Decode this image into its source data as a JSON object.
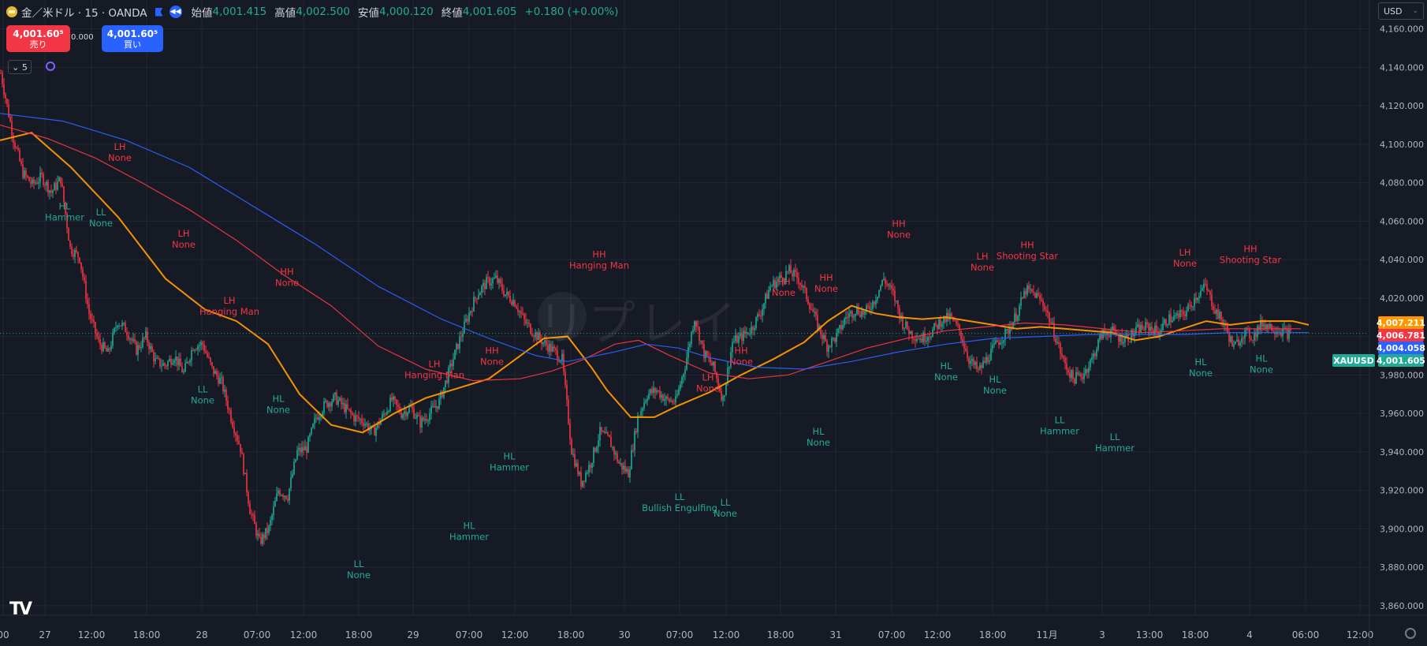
{
  "header": {
    "symbol": "金／米ドル · 15 · OANDA",
    "open_label": "始値",
    "open": "4,001.415",
    "high_label": "高値",
    "high": "4,002.500",
    "low_label": "安値",
    "low": "4,000.120",
    "close_label": "終値",
    "close": "4,001.605",
    "change": "+0.180 (+0.00%)",
    "icons": {
      "symbol": "gold-coin-icon",
      "flag": "flag-icon",
      "replay": "replay-icon"
    }
  },
  "trade": {
    "sell_price": "4,001.60⁵",
    "sell_label": "売り",
    "spread": "0.000",
    "buy_price": "4,001.60⁵",
    "buy_label": "買い"
  },
  "indicator": {
    "collapse_label": "⌄ 5",
    "icon": "sync-icon"
  },
  "currency": "USD",
  "watermark": "リプレイ",
  "colors": {
    "up": "#22ab94",
    "down": "#f23645",
    "ema_fast": "#ff9800",
    "ema_mid": "#f23645",
    "ema_slow": "#2962ff",
    "bg": "#161a25"
  },
  "chart_data": {
    "type": "candlestick",
    "symbol": "XAUUSD",
    "timeframe": "15",
    "ylim": [
      3855,
      4175
    ],
    "y_ticks": [
      "4,160.000",
      "4,140.000",
      "4,120.000",
      "4,100.000",
      "4,080.000",
      "4,060.000",
      "4,040.000",
      "4,020.000",
      "4,000.000",
      "3,980.000",
      "3,960.000",
      "3,940.000",
      "3,920.000",
      "3,900.000",
      "3,880.000",
      "3,860.000"
    ],
    "x_ticks": [
      "00",
      "27",
      "12:00",
      "18:00",
      "28",
      "07:00",
      "12:00",
      "18:00",
      "29",
      "07:00",
      "12:00",
      "18:00",
      "30",
      "07:00",
      "12:00",
      "18:00",
      "31",
      "07:00",
      "12:00",
      "18:00",
      "11月",
      "3",
      "13:00",
      "18:00",
      "4",
      "06:00",
      "12:00"
    ],
    "price_path": [
      [
        0,
        4137
      ],
      [
        8,
        4103
      ],
      [
        14,
        4085
      ],
      [
        20,
        4079
      ],
      [
        26,
        4083
      ],
      [
        32,
        4075
      ],
      [
        38,
        4082
      ],
      [
        44,
        4046
      ],
      [
        50,
        4041
      ],
      [
        56,
        4012
      ],
      [
        62,
        3997
      ],
      [
        68,
        3991
      ],
      [
        74,
        4008
      ],
      [
        80,
        4003
      ],
      [
        86,
        3993
      ],
      [
        92,
        4000
      ],
      [
        98,
        3987
      ],
      [
        104,
        3985
      ],
      [
        110,
        3990
      ],
      [
        116,
        3981
      ],
      [
        122,
        3995
      ],
      [
        128,
        3996
      ],
      [
        134,
        3983
      ],
      [
        140,
        3976
      ],
      [
        146,
        3958
      ],
      [
        152,
        3942
      ],
      [
        158,
        3910
      ],
      [
        164,
        3893
      ],
      [
        170,
        3900
      ],
      [
        176,
        3920
      ],
      [
        182,
        3917
      ],
      [
        188,
        3940
      ],
      [
        194,
        3942
      ],
      [
        200,
        3958
      ],
      [
        206,
        3965
      ],
      [
        212,
        3968
      ],
      [
        218,
        3963
      ],
      [
        224,
        3958
      ],
      [
        230,
        3956
      ],
      [
        236,
        3950
      ],
      [
        242,
        3958
      ],
      [
        248,
        3967
      ],
      [
        254,
        3960
      ],
      [
        260,
        3963
      ],
      [
        266,
        3955
      ],
      [
        272,
        3960
      ],
      [
        278,
        3966
      ],
      [
        284,
        3981
      ],
      [
        290,
        3996
      ],
      [
        296,
        4010
      ],
      [
        302,
        4022
      ],
      [
        308,
        4028
      ],
      [
        314,
        4030
      ],
      [
        320,
        4022
      ],
      [
        326,
        4018
      ],
      [
        332,
        4008
      ],
      [
        338,
        4002
      ],
      [
        344,
        3997
      ],
      [
        350,
        3993
      ],
      [
        356,
        3988
      ],
      [
        362,
        3941
      ],
      [
        368,
        3924
      ],
      [
        374,
        3934
      ],
      [
        380,
        3950
      ],
      [
        386,
        3946
      ],
      [
        392,
        3934
      ],
      [
        398,
        3929
      ],
      [
        404,
        3958
      ],
      [
        410,
        3970
      ],
      [
        416,
        3972
      ],
      [
        422,
        3967
      ],
      [
        428,
        3966
      ],
      [
        434,
        3985
      ],
      [
        440,
        4010
      ],
      [
        446,
        3991
      ],
      [
        452,
        3984
      ],
      [
        458,
        3967
      ],
      [
        464,
        3997
      ],
      [
        470,
        4000
      ],
      [
        476,
        4004
      ],
      [
        482,
        4013
      ],
      [
        488,
        4026
      ],
      [
        494,
        4030
      ],
      [
        500,
        4034
      ],
      [
        506,
        4030
      ],
      [
        512,
        4019
      ],
      [
        518,
        4006
      ],
      [
        524,
        3995
      ],
      [
        530,
        4000
      ],
      [
        536,
        4010
      ],
      [
        542,
        4014
      ],
      [
        548,
        4012
      ],
      [
        554,
        4019
      ],
      [
        560,
        4030
      ],
      [
        566,
        4022
      ],
      [
        572,
        4007
      ],
      [
        578,
        4001
      ],
      [
        584,
        3999
      ],
      [
        590,
        4002
      ],
      [
        596,
        4008
      ],
      [
        602,
        4010
      ],
      [
        608,
        4003
      ],
      [
        614,
        3988
      ],
      [
        620,
        3982
      ],
      [
        626,
        3989
      ],
      [
        632,
        3997
      ],
      [
        638,
        4002
      ],
      [
        644,
        4011
      ],
      [
        650,
        4024
      ],
      [
        656,
        4022
      ],
      [
        662,
        4016
      ],
      [
        668,
        4002
      ],
      [
        674,
        3987
      ],
      [
        680,
        3978
      ],
      [
        686,
        3980
      ],
      [
        692,
        3988
      ],
      [
        698,
        4001
      ],
      [
        704,
        4003
      ],
      [
        710,
        3999
      ],
      [
        716,
        4000
      ],
      [
        722,
        4004
      ],
      [
        728,
        4005
      ],
      [
        734,
        4002
      ],
      [
        740,
        4009
      ],
      [
        746,
        4010
      ],
      [
        752,
        4013
      ],
      [
        758,
        4021
      ],
      [
        764,
        4026
      ],
      [
        770,
        4014
      ],
      [
        776,
        4006
      ],
      [
        782,
        3994
      ],
      [
        788,
        4002
      ],
      [
        794,
        4000
      ],
      [
        800,
        4007
      ],
      [
        806,
        4005
      ],
      [
        812,
        4003
      ],
      [
        818,
        4001
      ]
    ],
    "series": [
      {
        "name": "",
        "color": "#ff9800",
        "values": [
          [
            0,
            4102
          ],
          [
            40,
            4106
          ],
          [
            90,
            4088
          ],
          [
            150,
            4062
          ],
          [
            210,
            4030
          ],
          [
            260,
            4014
          ],
          [
            300,
            4008
          ],
          [
            340,
            3996
          ],
          [
            380,
            3970
          ],
          [
            420,
            3954
          ],
          [
            460,
            3950
          ],
          [
            500,
            3960
          ],
          [
            540,
            3968
          ],
          [
            580,
            3973
          ],
          [
            620,
            3978
          ],
          [
            660,
            3990
          ],
          [
            690,
            3999
          ],
          [
            720,
            4000
          ],
          [
            750,
            3984
          ],
          [
            770,
            3972
          ],
          [
            800,
            3958
          ],
          [
            830,
            3958
          ],
          [
            860,
            3964
          ],
          [
            900,
            3971
          ],
          [
            940,
            3980
          ],
          [
            980,
            3988
          ],
          [
            1020,
            3997
          ],
          [
            1050,
            4008
          ],
          [
            1080,
            4016
          ],
          [
            1110,
            4012
          ],
          [
            1140,
            4010
          ],
          [
            1170,
            4009
          ],
          [
            1200,
            4010
          ],
          [
            1230,
            4008
          ],
          [
            1260,
            4006
          ],
          [
            1290,
            4004
          ],
          [
            1320,
            4005
          ],
          [
            1350,
            4004
          ],
          [
            1380,
            4003
          ],
          [
            1410,
            4002
          ],
          [
            1440,
            3998
          ],
          [
            1470,
            4000
          ],
          [
            1500,
            4004
          ],
          [
            1530,
            4008
          ],
          [
            1560,
            4006
          ],
          [
            1600,
            4008
          ],
          [
            1640,
            4008
          ],
          [
            1660,
            4006
          ]
        ]
      },
      {
        "name": "",
        "color": "#f23645",
        "values": [
          [
            0,
            4110
          ],
          [
            60,
            4103
          ],
          [
            120,
            4093
          ],
          [
            180,
            4080
          ],
          [
            240,
            4066
          ],
          [
            300,
            4050
          ],
          [
            360,
            4032
          ],
          [
            420,
            4016
          ],
          [
            480,
            3995
          ],
          [
            540,
            3983
          ],
          [
            600,
            3977
          ],
          [
            660,
            3978
          ],
          [
            700,
            3982
          ],
          [
            740,
            3988
          ],
          [
            780,
            3996
          ],
          [
            810,
            3998
          ],
          [
            850,
            3990
          ],
          [
            900,
            3981
          ],
          [
            950,
            3978
          ],
          [
            1000,
            3980
          ],
          [
            1050,
            3987
          ],
          [
            1100,
            3994
          ],
          [
            1150,
            3999
          ],
          [
            1200,
            4003
          ],
          [
            1250,
            4005
          ],
          [
            1300,
            4007
          ],
          [
            1350,
            4006
          ],
          [
            1400,
            4004
          ],
          [
            1450,
            4002
          ],
          [
            1500,
            4003
          ],
          [
            1550,
            4004
          ],
          [
            1600,
            4004
          ],
          [
            1650,
            4004
          ]
        ]
      },
      {
        "name": "",
        "color": "#2962ff",
        "values": [
          [
            0,
            4116
          ],
          [
            80,
            4112
          ],
          [
            160,
            4102
          ],
          [
            240,
            4088
          ],
          [
            320,
            4068
          ],
          [
            400,
            4048
          ],
          [
            480,
            4026
          ],
          [
            560,
            4009
          ],
          [
            620,
            3999
          ],
          [
            680,
            3990
          ],
          [
            720,
            3987
          ],
          [
            780,
            3992
          ],
          [
            820,
            3996
          ],
          [
            860,
            3994
          ],
          [
            900,
            3989
          ],
          [
            960,
            3984
          ],
          [
            1020,
            3983
          ],
          [
            1080,
            3987
          ],
          [
            1140,
            3992
          ],
          [
            1200,
            3996
          ],
          [
            1260,
            3999
          ],
          [
            1320,
            4000
          ],
          [
            1380,
            4001
          ],
          [
            1440,
            4001
          ],
          [
            1500,
            4001
          ],
          [
            1560,
            4002
          ],
          [
            1620,
            4002
          ],
          [
            1660,
            4002
          ]
        ]
      }
    ],
    "price_labels": [
      {
        "value": "4,007.211",
        "color": "#ff9800",
        "price": 4007.211
      },
      {
        "value": "4,006.781",
        "color": "#f23645",
        "price": 4006.781
      },
      {
        "value": "4,004.058",
        "color": "#2962ff",
        "price": 4004.058
      },
      {
        "value": "4,001.605",
        "color": "#22ab94",
        "price": 4001.605,
        "tag": "XAUUSD"
      }
    ],
    "annotations": [
      {
        "lines": [
          "HL",
          "Hammer"
        ],
        "x": 82,
        "price": 4066,
        "color": "#22ab94"
      },
      {
        "lines": [
          "LL",
          "None"
        ],
        "x": 128,
        "price": 4063,
        "color": "#22ab94"
      },
      {
        "lines": [
          "LH",
          "None"
        ],
        "x": 152,
        "price": 4097,
        "color": "#f23645"
      },
      {
        "lines": [
          "LH",
          "None"
        ],
        "x": 233,
        "price": 4052,
        "color": "#f23645"
      },
      {
        "lines": [
          "LH",
          "Hanging Man"
        ],
        "x": 291,
        "price": 4017,
        "color": "#f23645"
      },
      {
        "lines": [
          "HH",
          "None"
        ],
        "x": 364,
        "price": 4032,
        "color": "#f23645"
      },
      {
        "lines": [
          "LL",
          "None"
        ],
        "x": 257,
        "price": 3971,
        "color": "#22ab94"
      },
      {
        "lines": [
          "HL",
          "None"
        ],
        "x": 353,
        "price": 3966,
        "color": "#22ab94"
      },
      {
        "lines": [
          "LL",
          "None"
        ],
        "x": 455,
        "price": 3880,
        "color": "#22ab94"
      },
      {
        "lines": [
          "LH",
          "Hanging Man"
        ],
        "x": 551,
        "price": 3984,
        "color": "#f23645"
      },
      {
        "lines": [
          "HH",
          "None"
        ],
        "x": 624,
        "price": 3991,
        "color": "#f23645"
      },
      {
        "lines": [
          "HL",
          "Hammer"
        ],
        "x": 595,
        "price": 3900,
        "color": "#22ab94"
      },
      {
        "lines": [
          "HL",
          "Hammer"
        ],
        "x": 646,
        "price": 3936,
        "color": "#22ab94"
      },
      {
        "lines": [
          "HH",
          "Hanging Man"
        ],
        "x": 760,
        "price": 4041,
        "color": "#f23645"
      },
      {
        "lines": [
          "LL",
          "Bullish Engulfing"
        ],
        "x": 862,
        "price": 3915,
        "color": "#22ab94"
      },
      {
        "lines": [
          "LL",
          "None"
        ],
        "x": 920,
        "price": 3912,
        "color": "#22ab94"
      },
      {
        "lines": [
          "LH",
          "None"
        ],
        "x": 898,
        "price": 3977,
        "color": "#f23645"
      },
      {
        "lines": [
          "HH",
          "None"
        ],
        "x": 940,
        "price": 3991,
        "color": "#f23645"
      },
      {
        "lines": [
          "HH",
          "None"
        ],
        "x": 994,
        "price": 4027,
        "color": "#f23645"
      },
      {
        "lines": [
          "HH",
          "None"
        ],
        "x": 1048,
        "price": 4029,
        "color": "#f23645"
      },
      {
        "lines": [
          "HL",
          "None"
        ],
        "x": 1038,
        "price": 3949,
        "color": "#22ab94"
      },
      {
        "lines": [
          "HH",
          "None"
        ],
        "x": 1140,
        "price": 4057,
        "color": "#f23645"
      },
      {
        "lines": [
          "LH",
          "None"
        ],
        "x": 1246,
        "price": 4040,
        "color": "#f23645"
      },
      {
        "lines": [
          "HH",
          "Shooting Star"
        ],
        "x": 1303,
        "price": 4046,
        "color": "#f23645"
      },
      {
        "lines": [
          "HL",
          "None"
        ],
        "x": 1200,
        "price": 3983,
        "color": "#22ab94"
      },
      {
        "lines": [
          "HL",
          "None"
        ],
        "x": 1262,
        "price": 3976,
        "color": "#22ab94"
      },
      {
        "lines": [
          "LL",
          "Hammer"
        ],
        "x": 1344,
        "price": 3955,
        "color": "#22ab94"
      },
      {
        "lines": [
          "LL",
          "Hammer"
        ],
        "x": 1414,
        "price": 3946,
        "color": "#22ab94"
      },
      {
        "lines": [
          "LH",
          "None"
        ],
        "x": 1503,
        "price": 4042,
        "color": "#f23645"
      },
      {
        "lines": [
          "HH",
          "Shooting Star"
        ],
        "x": 1586,
        "price": 4044,
        "color": "#f23645"
      },
      {
        "lines": [
          "HL",
          "None"
        ],
        "x": 1523,
        "price": 3985,
        "color": "#22ab94"
      },
      {
        "lines": [
          "HL",
          "None"
        ],
        "x": 1600,
        "price": 3987,
        "color": "#22ab94"
      }
    ]
  }
}
